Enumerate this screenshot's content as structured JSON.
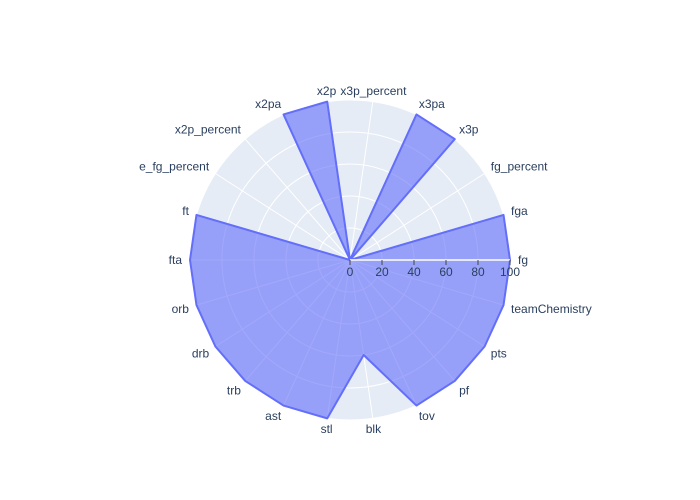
{
  "chart_data": {
    "type": "radar",
    "categories": [
      "fg",
      "fga",
      "fg_percent",
      "x3p",
      "x3pa",
      "x3p_percent",
      "x2p",
      "x2pa",
      "x2p_percent",
      "e_fg_percent",
      "ft",
      "fta",
      "orb",
      "drb",
      "trb",
      "ast",
      "stl",
      "blk",
      "tov",
      "pf",
      "pts",
      "teamChemistry"
    ],
    "values": [
      100,
      100,
      0,
      100,
      100,
      0,
      100,
      100,
      0,
      0,
      100,
      100,
      100,
      100,
      100,
      100,
      100,
      60,
      100,
      100,
      100,
      100
    ],
    "radial_range": [
      0,
      100
    ],
    "radial_ticks": [
      0,
      20,
      40,
      60,
      80,
      100
    ],
    "fill_color": "#636efa",
    "fill_opacity": 0.6,
    "background_color": "#e5ecf6",
    "grid": true,
    "legend": "none"
  }
}
